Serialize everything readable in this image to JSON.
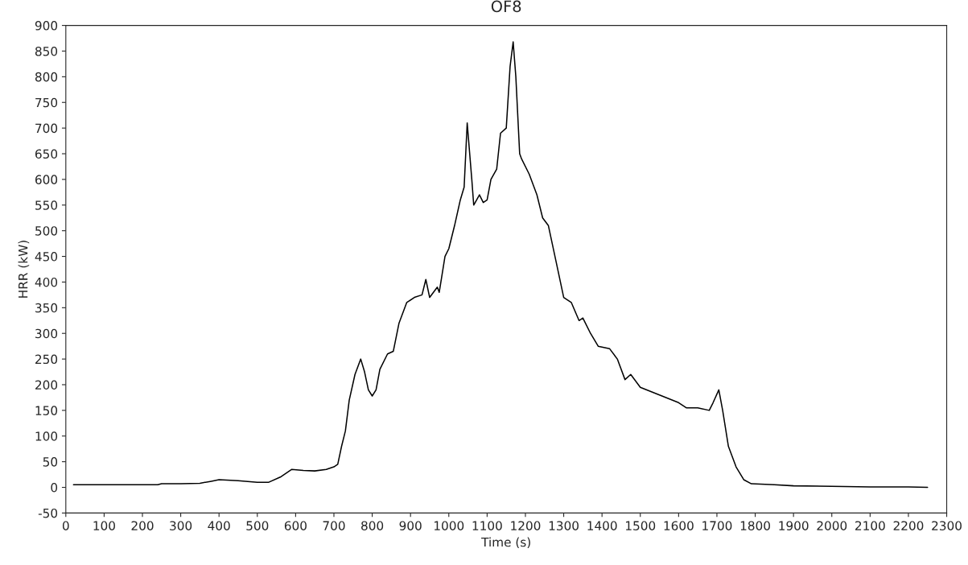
{
  "chart_data": {
    "type": "line",
    "title": "OF8",
    "xlabel": "Time (s)",
    "ylabel": "HRR (kW)",
    "xlim": [
      0,
      2300
    ],
    "xticks": [
      0,
      100,
      200,
      300,
      400,
      500,
      600,
      700,
      800,
      900,
      1000,
      1100,
      1200,
      1300,
      1400,
      1500,
      1600,
      1700,
      1800,
      1900,
      2000,
      2100,
      2200,
      2300
    ],
    "ylim": [
      -50,
      900
    ],
    "yticks": [
      -50,
      0,
      50,
      100,
      150,
      200,
      250,
      300,
      350,
      400,
      450,
      500,
      550,
      600,
      650,
      700,
      750,
      800,
      850,
      900
    ],
    "grid": false,
    "legend": false,
    "series": [
      {
        "color": "#000000",
        "line_style": "solid",
        "x": [
          20,
          100,
          240,
          250,
          300,
          350,
          380,
          400,
          450,
          500,
          530,
          560,
          590,
          620,
          650,
          680,
          700,
          710,
          720,
          730,
          740,
          755,
          770,
          780,
          790,
          800,
          810,
          820,
          840,
          855,
          870,
          890,
          910,
          930,
          940,
          950,
          970,
          975,
          990,
          1000,
          1015,
          1030,
          1040,
          1048,
          1060,
          1065,
          1080,
          1090,
          1100,
          1110,
          1125,
          1135,
          1150,
          1160,
          1168,
          1175,
          1185,
          1190,
          1210,
          1230,
          1245,
          1260,
          1280,
          1300,
          1320,
          1340,
          1350,
          1370,
          1390,
          1420,
          1440,
          1460,
          1475,
          1500,
          1550,
          1600,
          1620,
          1650,
          1680,
          1690,
          1705,
          1715,
          1730,
          1750,
          1770,
          1790,
          1850,
          1900,
          2000,
          2100,
          2200,
          2250
        ],
        "values": [
          5,
          5,
          5,
          7,
          7,
          8,
          12,
          15,
          13,
          10,
          10,
          20,
          35,
          33,
          32,
          35,
          40,
          45,
          80,
          110,
          170,
          220,
          250,
          225,
          190,
          178,
          190,
          230,
          260,
          265,
          320,
          360,
          370,
          375,
          405,
          370,
          390,
          380,
          450,
          465,
          510,
          560,
          585,
          710,
          600,
          550,
          570,
          555,
          560,
          600,
          620,
          690,
          700,
          820,
          868,
          800,
          650,
          640,
          610,
          570,
          525,
          510,
          440,
          370,
          360,
          325,
          330,
          300,
          275,
          270,
          250,
          210,
          220,
          195,
          180,
          165,
          155,
          155,
          150,
          165,
          190,
          150,
          80,
          40,
          15,
          7,
          5,
          3,
          2,
          1,
          1,
          0
        ]
      }
    ]
  }
}
